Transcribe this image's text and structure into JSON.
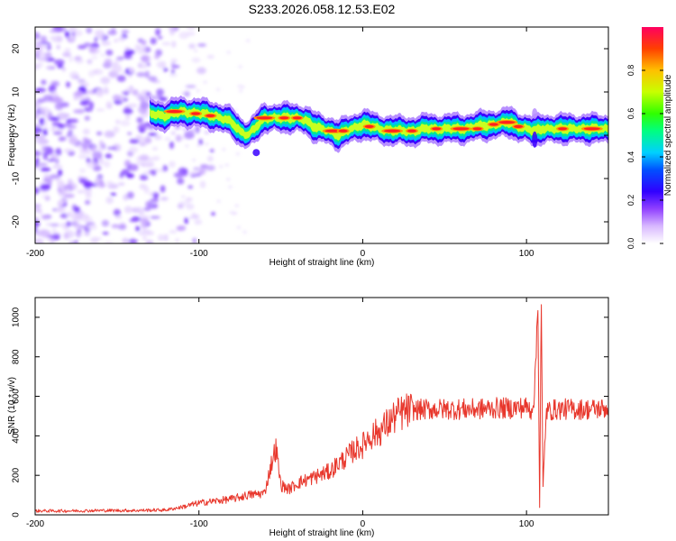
{
  "page_title": "S233.2026.058.12.53.E02",
  "chart_data": [
    {
      "type": "heatmap",
      "name": "spectrogram",
      "title": "S233.2026.058.12.53.E02",
      "xlabel": "Height of straight line (km)",
      "ylabel": "Frequency (Hz)",
      "xlim": [
        -200,
        150
      ],
      "ylim": [
        -25,
        25
      ],
      "x_ticks": [
        -200,
        -100,
        0,
        100
      ],
      "x_tick_labels": [
        "-200",
        "-100",
        "0",
        "100"
      ],
      "y_ticks": [
        20,
        10,
        0,
        -10,
        -20
      ],
      "y_tick_labels": [
        "20",
        "10",
        "0",
        "-10",
        "-20"
      ],
      "noise_region_x": [
        -200,
        -110
      ],
      "signal_start_x": -130,
      "ridge": {
        "x": [
          -130,
          -120,
          -110,
          -100,
          -90,
          -80,
          -75,
          -70,
          -65,
          -60,
          -50,
          -40,
          -35,
          -30,
          -20,
          -15,
          -10,
          0,
          10,
          20,
          30,
          40,
          60,
          70,
          80,
          90,
          95,
          100,
          105,
          110,
          150
        ],
        "y": [
          5,
          4.5,
          5.5,
          5,
          4.5,
          3,
          1,
          0,
          2,
          4,
          4,
          4,
          3.5,
          2,
          1,
          0,
          1,
          2.5,
          1.5,
          1,
          1,
          1.5,
          1.5,
          2,
          2.5,
          3,
          2,
          1.5,
          1,
          1.5,
          1.5
        ],
        "peak_amplitude": 1.0
      },
      "colorbar": {
        "label": "Normalized spectral amplitude",
        "range": [
          0,
          1
        ],
        "ticks": [
          0.0,
          0.2,
          0.4,
          0.6,
          0.8
        ],
        "tick_labels": [
          "0.0",
          "0.2",
          "0.4",
          "0.6",
          "0.8"
        ],
        "colors": [
          "#ffffff",
          "#b070ff",
          "#7000ff",
          "#0000ff",
          "#00c8ff",
          "#00ff60",
          "#c0ff00",
          "#ffc000",
          "#ff4000",
          "#ff0050"
        ]
      }
    },
    {
      "type": "line",
      "name": "snr",
      "xlabel": "Height of straight line (km)",
      "ylabel": "SNR (10 * v/v)",
      "xlim": [
        -200,
        150
      ],
      "ylim": [
        0,
        1100
      ],
      "x_ticks": [
        -200,
        -100,
        0,
        100
      ],
      "x_tick_labels": [
        "-200",
        "-100",
        "0",
        "100"
      ],
      "y_ticks": [
        0,
        200,
        400,
        600,
        800,
        1000
      ],
      "y_tick_labels": [
        "0",
        "200",
        "400",
        "600",
        "800",
        "1000"
      ],
      "series": [
        {
          "name": "SNR",
          "color": "#e8372c",
          "x": [
            -200,
            -180,
            -160,
            -140,
            -120,
            -110,
            -100,
            -90,
            -80,
            -70,
            -60,
            -56,
            -53,
            -50,
            -45,
            -40,
            -30,
            -20,
            -15,
            -10,
            -5,
            0,
            2,
            5,
            10,
            15,
            20,
            25,
            30,
            40,
            50,
            60,
            70,
            80,
            90,
            100,
            103,
            105,
            107,
            108,
            109,
            110,
            112,
            115,
            120,
            130,
            140,
            150
          ],
          "y": [
            20,
            20,
            22,
            22,
            25,
            40,
            60,
            70,
            80,
            100,
            110,
            250,
            340,
            150,
            130,
            160,
            190,
            220,
            260,
            290,
            330,
            350,
            380,
            400,
            420,
            460,
            500,
            520,
            530,
            535,
            535,
            535,
            535,
            540,
            540,
            545,
            530,
            620,
            1100,
            40,
            1100,
            120,
            520,
            530,
            535,
            535,
            535,
            540
          ]
        }
      ]
    }
  ]
}
